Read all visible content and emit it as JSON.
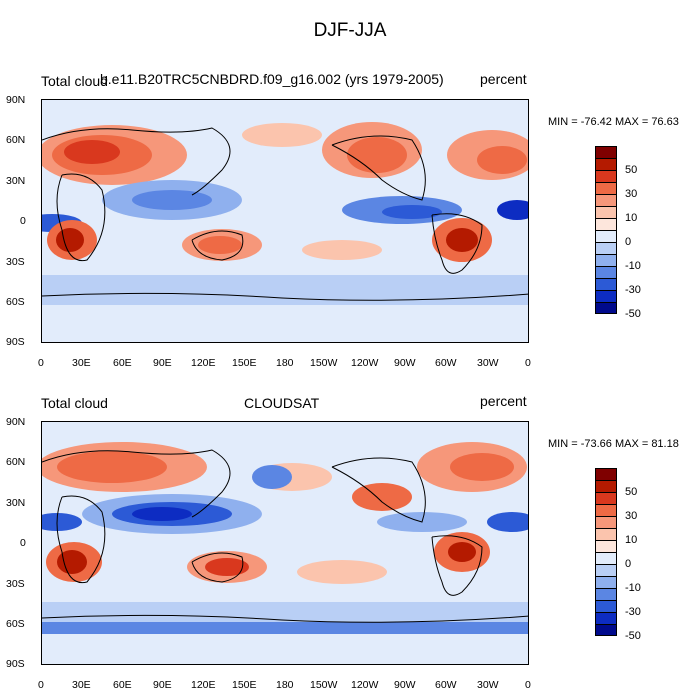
{
  "figure_title": "DJF-JJA",
  "panels": [
    {
      "left_label": "Total cloud",
      "center_label": "b.e11.B20TRC5CNBDRD.f09_g16.002 (yrs 1979-2005)",
      "right_label": "percent",
      "min_max": "MIN = -76.42 MAX =  76.63"
    },
    {
      "left_label": "Total cloud",
      "center_label": "CLOUDSAT",
      "right_label": "percent",
      "min_max": "MIN = -73.66 MAX =  81.18"
    }
  ],
  "x_axis_ticks": [
    "0",
    "30E",
    "60E",
    "90E",
    "120E",
    "150E",
    "180",
    "150W",
    "120W",
    "90W",
    "60W",
    "30W",
    "0"
  ],
  "y_axis_ticks": [
    "90N",
    "60N",
    "30N",
    "0",
    "30S",
    "60S",
    "90S"
  ],
  "colorbar": {
    "labels": [
      "50",
      "30",
      "10",
      "0",
      "-10",
      "-30",
      "-50"
    ],
    "colors": [
      "#7f0000",
      "#b41a00",
      "#d9381e",
      "#ee6a45",
      "#f6977a",
      "#fbc4ad",
      "#fde6dc",
      "#e2ecfb",
      "#b9cff5",
      "#8fb0ee",
      "#5b86e3",
      "#2c5ad6",
      "#0d2cc2",
      "#000a8c"
    ]
  }
}
